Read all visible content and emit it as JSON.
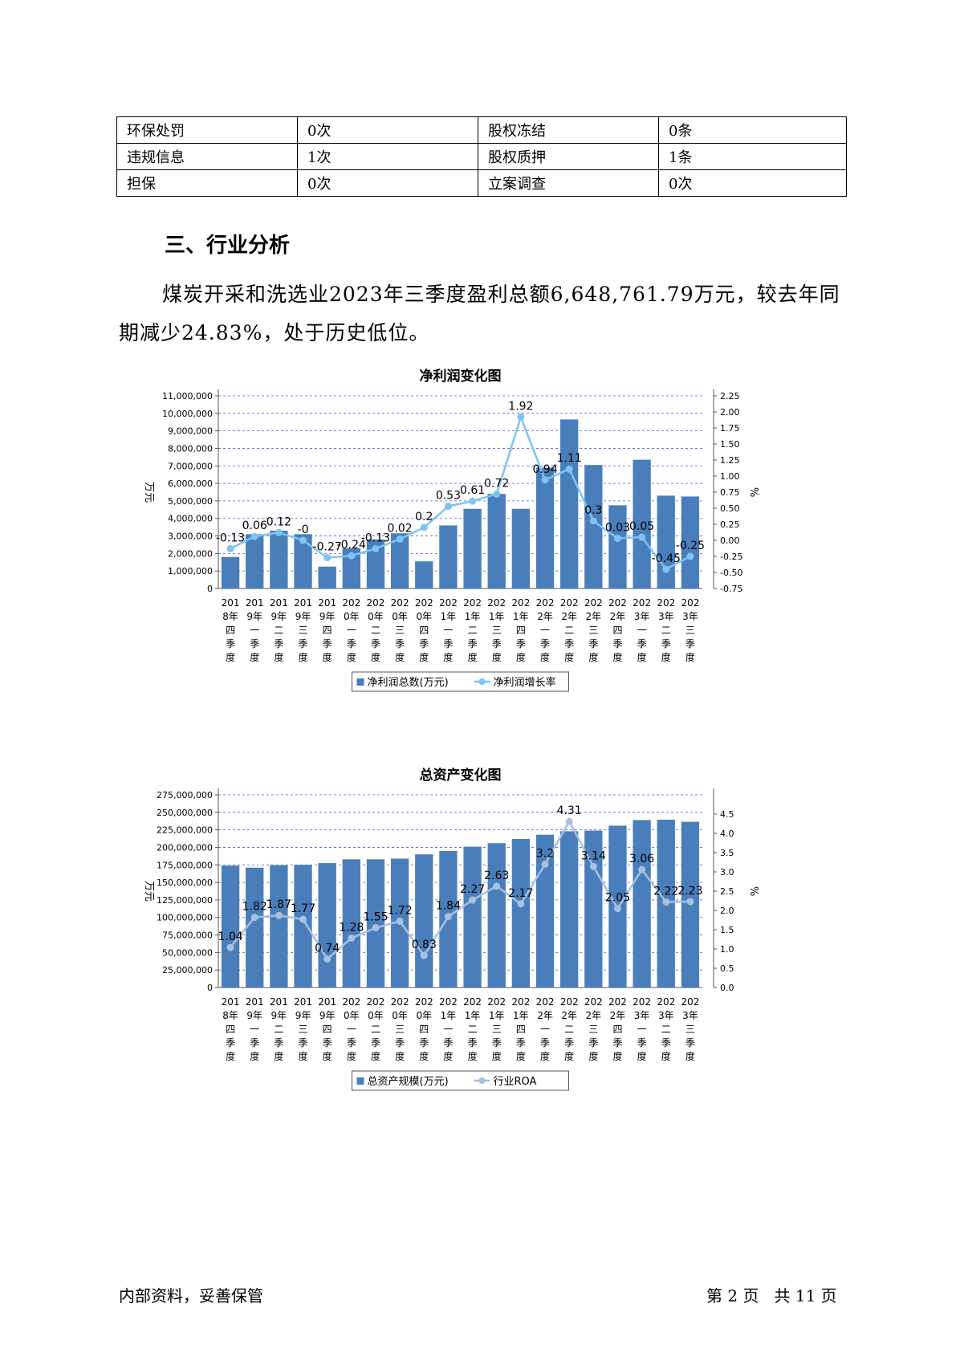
{
  "info_table": {
    "rows": [
      [
        "环保处罚",
        "0次",
        "股权冻结",
        "0条"
      ],
      [
        "违规信息",
        "1次",
        "股权质押",
        "1条"
      ],
      [
        "担保",
        "0次",
        "立案调查",
        "0次"
      ]
    ]
  },
  "section_heading": "三、行业分析",
  "paragraph": "煤炭开采和洗选业2023年三季度盈利总额6,648,761.79万元，较去年同期减少24.83%，处于历史低位。",
  "charts": [
    {
      "title": "净利润变化图",
      "left_unit": "万元",
      "right_unit": "%",
      "bar_legend": "净利润总数(万元)",
      "line_legend": "净利润增长率",
      "bar_color": "#4a7ebb",
      "line_color": "#7ec4f2"
    },
    {
      "title": "总资产变化图",
      "left_unit": "万元",
      "right_unit": "%",
      "bar_legend": "总资产规模(万元)",
      "line_legend": "行业ROA",
      "bar_color": "#4a7ebb",
      "line_color": "#a9c0e0"
    }
  ],
  "chart_data": [
    {
      "type": "bar",
      "title": "净利润变化图",
      "categories": [
        "2018年四季度",
        "2019年一季度",
        "2019年二季度",
        "2019年三季度",
        "2019年四季度",
        "2020年一季度",
        "2020年二季度",
        "2020年三季度",
        "2020年四季度",
        "2021年一季度",
        "2021年二季度",
        "2021年三季度",
        "2021年四季度",
        "2022年一季度",
        "2022年二季度",
        "2022年三季度",
        "2022年四季度",
        "2023年一季度",
        "2023年二季度",
        "2023年三季度"
      ],
      "category_lines": [
        [
          "201",
          "8年",
          "四",
          "季",
          "度"
        ],
        [
          "201",
          "9年",
          "一",
          "季",
          "度"
        ],
        [
          "201",
          "9年",
          "二",
          "季",
          "度"
        ],
        [
          "201",
          "9年",
          "三",
          "季",
          "度"
        ],
        [
          "201",
          "9年",
          "四",
          "季",
          "度"
        ],
        [
          "202",
          "0年",
          "一",
          "季",
          "度"
        ],
        [
          "202",
          "0年",
          "二",
          "季",
          "度"
        ],
        [
          "202",
          "0年",
          "三",
          "季",
          "度"
        ],
        [
          "202",
          "0年",
          "四",
          "季",
          "度"
        ],
        [
          "202",
          "1年",
          "一",
          "季",
          "度"
        ],
        [
          "202",
          "1年",
          "二",
          "季",
          "度"
        ],
        [
          "202",
          "1年",
          "三",
          "季",
          "度"
        ],
        [
          "202",
          "1年",
          "四",
          "季",
          "度"
        ],
        [
          "202",
          "2年",
          "一",
          "季",
          "度"
        ],
        [
          "202",
          "2年",
          "二",
          "季",
          "度"
        ],
        [
          "202",
          "2年",
          "三",
          "季",
          "度"
        ],
        [
          "202",
          "2年",
          "四",
          "季",
          "度"
        ],
        [
          "202",
          "3年",
          "一",
          "季",
          "度"
        ],
        [
          "202",
          "3年",
          "二",
          "季",
          "度"
        ],
        [
          "202",
          "3年",
          "三",
          "季",
          "度"
        ]
      ],
      "series": [
        {
          "name": "净利润总数(万元)",
          "axis": "left",
          "kind": "bar",
          "values": [
            1800000,
            3100000,
            3300000,
            3100000,
            1250000,
            2300000,
            2800000,
            3150000,
            1550000,
            3600000,
            4550000,
            5400000,
            4550000,
            6900000,
            9650000,
            7050000,
            4750000,
            7350000,
            5300000,
            5250000
          ]
        },
        {
          "name": "净利润增长率",
          "axis": "right",
          "kind": "line",
          "values": [
            -0.13,
            0.06,
            0.12,
            0,
            -0.27,
            -0.24,
            -0.13,
            0.02,
            0.2,
            0.53,
            0.61,
            0.72,
            1.92,
            0.94,
            1.11,
            0.3,
            0.03,
            0.05,
            -0.45,
            -0.25
          ],
          "labels": [
            "-0.13",
            "0.06",
            "0.12",
            "-0",
            "-0.27",
            "-0.24",
            "-0.13",
            "0.02",
            "0.2",
            "0.53",
            "0.61",
            "0.72",
            "1.92",
            "0.94",
            "1.11",
            "0.3",
            "0.03",
            "0.05",
            "-0.45",
            "-0.25"
          ]
        }
      ],
      "ylim_left": [
        0,
        11000000
      ],
      "yticks_left": [
        "0",
        "1,000,000",
        "2,000,000",
        "3,000,000",
        "4,000,000",
        "5,000,000",
        "6,000,000",
        "7,000,000",
        "8,000,000",
        "9,000,000",
        "10,000,000",
        "11,000,000"
      ],
      "ylim_right": [
        -0.75,
        2.25
      ],
      "yticks_right": [
        "-0.75",
        "-0.50",
        "-0.25",
        "0.00",
        "0.25",
        "0.50",
        "0.75",
        "1.00",
        "1.25",
        "1.50",
        "1.75",
        "2.00",
        "2.25"
      ],
      "ylabel_left": "万元",
      "ylabel_right": "%",
      "grid": true,
      "legend": "bottom"
    },
    {
      "type": "bar",
      "title": "总资产变化图",
      "categories": [
        "2018年四季度",
        "2019年一季度",
        "2019年二季度",
        "2019年三季度",
        "2019年四季度",
        "2020年一季度",
        "2020年二季度",
        "2020年三季度",
        "2020年四季度",
        "2021年一季度",
        "2021年二季度",
        "2021年三季度",
        "2021年四季度",
        "2022年一季度",
        "2022年二季度",
        "2022年三季度",
        "2022年四季度",
        "2023年一季度",
        "2023年二季度",
        "2023年三季度"
      ],
      "category_lines": [
        [
          "201",
          "8年",
          "四",
          "季",
          "度"
        ],
        [
          "201",
          "9年",
          "一",
          "季",
          "度"
        ],
        [
          "201",
          "9年",
          "二",
          "季",
          "度"
        ],
        [
          "201",
          "9年",
          "三",
          "季",
          "度"
        ],
        [
          "201",
          "9年",
          "四",
          "季",
          "度"
        ],
        [
          "202",
          "0年",
          "一",
          "季",
          "度"
        ],
        [
          "202",
          "0年",
          "二",
          "季",
          "度"
        ],
        [
          "202",
          "0年",
          "三",
          "季",
          "度"
        ],
        [
          "202",
          "0年",
          "四",
          "季",
          "度"
        ],
        [
          "202",
          "1年",
          "一",
          "季",
          "度"
        ],
        [
          "202",
          "1年",
          "二",
          "季",
          "度"
        ],
        [
          "202",
          "1年",
          "三",
          "季",
          "度"
        ],
        [
          "202",
          "1年",
          "四",
          "季",
          "度"
        ],
        [
          "202",
          "2年",
          "一",
          "季",
          "度"
        ],
        [
          "202",
          "2年",
          "二",
          "季",
          "度"
        ],
        [
          "202",
          "2年",
          "三",
          "季",
          "度"
        ],
        [
          "202",
          "2年",
          "四",
          "季",
          "度"
        ],
        [
          "202",
          "3年",
          "一",
          "季",
          "度"
        ],
        [
          "202",
          "3年",
          "二",
          "季",
          "度"
        ],
        [
          "202",
          "3年",
          "三",
          "季",
          "度"
        ]
      ],
      "series": [
        {
          "name": "总资产规模(万元)",
          "axis": "left",
          "kind": "bar",
          "values": [
            174000000,
            171000000,
            174500000,
            175000000,
            177500000,
            183000000,
            183000000,
            184000000,
            190000000,
            195000000,
            201000000,
            206000000,
            212000000,
            218000000,
            223000000,
            224000000,
            231000000,
            239000000,
            239500000,
            236500000
          ]
        },
        {
          "name": "行业ROA",
          "axis": "right",
          "kind": "line",
          "values": [
            1.04,
            1.82,
            1.87,
            1.77,
            0.74,
            1.28,
            1.55,
            1.72,
            0.83,
            1.84,
            2.27,
            2.63,
            2.17,
            3.2,
            4.31,
            3.14,
            2.05,
            3.06,
            2.22,
            2.23
          ],
          "labels": [
            "1.04",
            "1.82",
            "1.87",
            "1.77",
            "0.74",
            "1.28",
            "1.55",
            "1.72",
            "0.83",
            "1.84",
            "2.27",
            "2.63",
            "2.17",
            "3.2",
            "4.31",
            "3.14",
            "2.05",
            "3.06",
            "2.22",
            "2.23"
          ]
        }
      ],
      "ylim_left": [
        0,
        275000000
      ],
      "yticks_left": [
        "0",
        "25,000,000",
        "50,000,000",
        "75,000,000",
        "100,000,000",
        "125,000,000",
        "150,000,000",
        "175,000,000",
        "200,000,000",
        "225,000,000",
        "250,000,000",
        "275,000,000"
      ],
      "ylim_right": [
        0,
        5
      ],
      "yticks_right": [
        "0.0",
        "0.5",
        "1.0",
        "1.5",
        "2.0",
        "2.5",
        "3.0",
        "3.5",
        "4.0",
        "4.5"
      ],
      "ylabel_left": "万元",
      "ylabel_right": "%",
      "grid": true,
      "legend": "bottom"
    }
  ],
  "footer": {
    "left": "内部资料，妥善保管",
    "right": "第 2 页   共 11 页"
  }
}
